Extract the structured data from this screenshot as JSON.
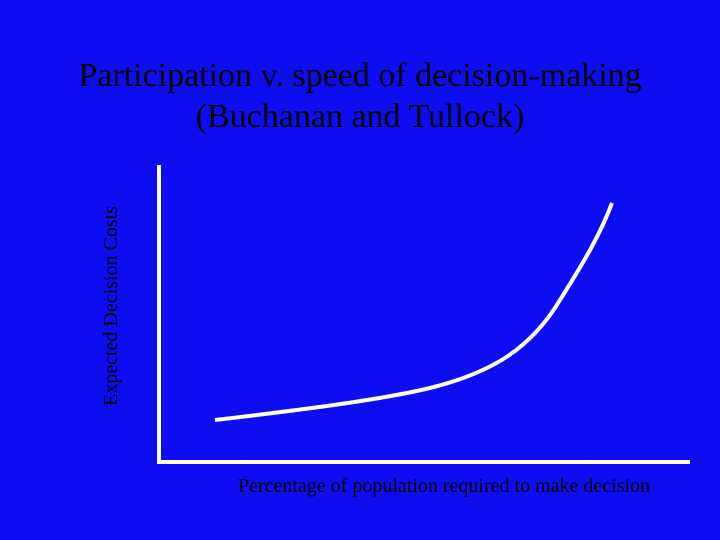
{
  "title": {
    "line1": "Participation v. speed of decision-making",
    "line2": "(Buchanan and Tullock)"
  },
  "axes": {
    "y_label": "Expected Decision Costs",
    "x_label": "Percentage of population required to make decision"
  }
}
